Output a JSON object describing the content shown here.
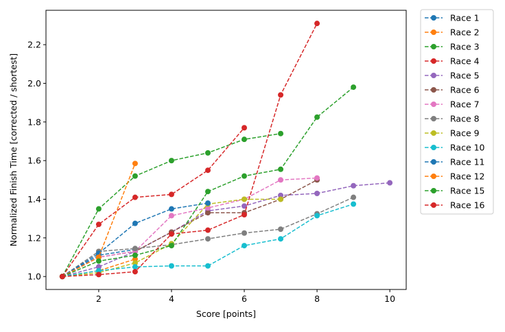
{
  "chart_data": {
    "type": "line",
    "x_label": "Score [points]",
    "y_label": "Normalized Finish Time [corrected / shortest]",
    "x": [
      1,
      2,
      3,
      4,
      5,
      6,
      7,
      8,
      9,
      10
    ],
    "xlim": [
      0.55,
      10.45
    ],
    "xticks": [
      2,
      4,
      6,
      8,
      10
    ],
    "ylim": [
      0.933,
      2.378
    ],
    "yticks": [
      {
        "value": 1,
        "label": "1.0"
      },
      1.2,
      1.4,
      1.6,
      1.8,
      {
        "value": 2,
        "label": "2.0"
      },
      2.2
    ],
    "legend": "outside-right",
    "series": [
      {
        "name": "Race 1",
        "color": "#1f77b4",
        "values": [
          1,
          1.11,
          1.14,
          null,
          null,
          null,
          null,
          null,
          null,
          null
        ]
      },
      {
        "name": "Race 2",
        "color": "#ff7f0e",
        "values": [
          1,
          1.03,
          1.09,
          null,
          null,
          null,
          null,
          null,
          null,
          null
        ]
      },
      {
        "name": "Race 3",
        "color": "#2ca02c",
        "values": [
          1,
          1.35,
          1.52,
          1.6,
          1.64,
          1.71,
          1.74,
          null,
          null,
          null
        ]
      },
      {
        "name": "Race 4",
        "color": "#d62728",
        "values": [
          1,
          1.27,
          1.41,
          1.425,
          1.55,
          1.77,
          null,
          null,
          null,
          null
        ]
      },
      {
        "name": "Race 5",
        "color": "#9467bd",
        "values": [
          1,
          1.05,
          1.13,
          1.23,
          1.34,
          1.365,
          1.42,
          1.43,
          1.47,
          1.485
        ]
      },
      {
        "name": "Race 6",
        "color": "#8c564b",
        "values": [
          1,
          1.1,
          1.13,
          1.23,
          1.33,
          1.33,
          1.4,
          1.5,
          null,
          null
        ]
      },
      {
        "name": "Race 7",
        "color": "#e377c2",
        "values": [
          1,
          1.1,
          1.13,
          1.315,
          1.355,
          1.4,
          1.5,
          1.51,
          null,
          null
        ]
      },
      {
        "name": "Race 8",
        "color": "#7f7f7f",
        "values": [
          1,
          1.13,
          1.145,
          1.165,
          1.195,
          1.225,
          1.245,
          1.325,
          1.41,
          null
        ]
      },
      {
        "name": "Race 9",
        "color": "#bcbd22",
        "values": [
          1,
          1.02,
          1.07,
          1.17,
          1.375,
          1.4,
          1.4,
          null,
          null,
          null
        ]
      },
      {
        "name": "Race 10",
        "color": "#17becf",
        "values": [
          1,
          1.03,
          1.05,
          1.055,
          1.055,
          1.16,
          1.195,
          1.315,
          1.375,
          null
        ]
      },
      {
        "name": "Race 11",
        "color": "#1f77b4",
        "values": [
          1,
          1.12,
          1.275,
          1.35,
          1.38,
          null,
          null,
          null,
          null,
          null
        ]
      },
      {
        "name": "Race 12",
        "color": "#ff7f0e",
        "values": [
          1,
          1.1,
          1.585,
          null,
          null,
          null,
          null,
          null,
          null,
          null
        ]
      },
      {
        "name": "Race 15",
        "color": "#2ca02c",
        "values": [
          1,
          1.08,
          1.11,
          1.16,
          1.44,
          1.52,
          1.555,
          1.825,
          1.98,
          null
        ]
      },
      {
        "name": "Race 16",
        "color": "#d62728",
        "values": [
          1,
          1.01,
          1.025,
          1.22,
          1.24,
          1.32,
          1.94,
          2.31,
          null,
          null
        ]
      }
    ]
  }
}
